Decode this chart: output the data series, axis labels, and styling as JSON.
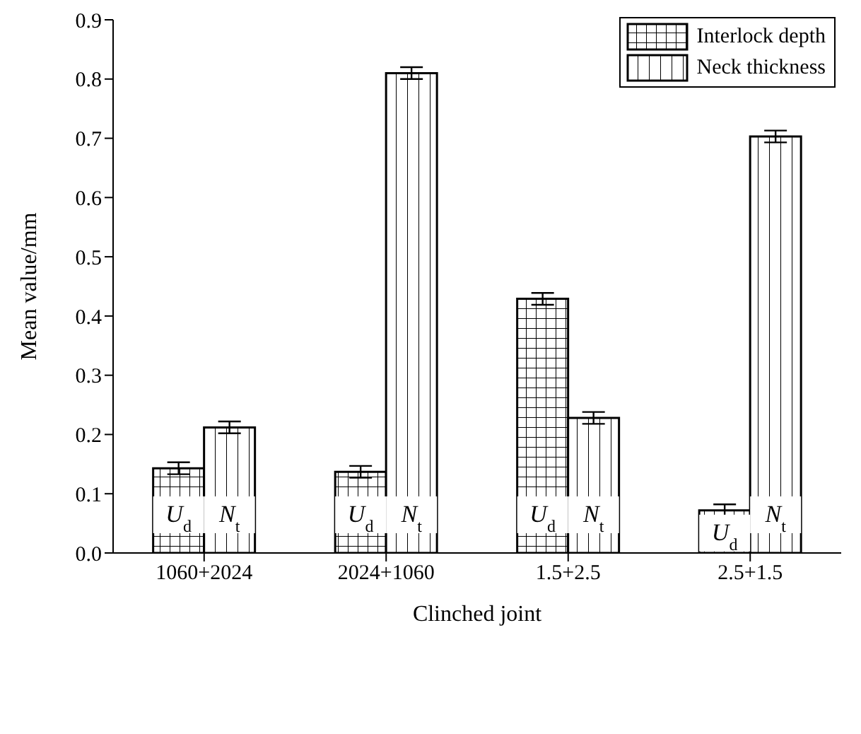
{
  "chart_data": {
    "type": "bar",
    "xlabel": "Clinched joint",
    "ylabel": "Mean value/mm",
    "categories": [
      "1060+2024",
      "2024+1060",
      "1.5+2.5",
      "2.5+1.5"
    ],
    "series": [
      {
        "name": "Interlock depth",
        "color": "#000000",
        "values": [
          0.143,
          0.137,
          0.429,
          0.072
        ],
        "errors": [
          0.01,
          0.01,
          0.01,
          0.01
        ],
        "value_labels": [
          "U$_{d}$",
          "U$_{d}$",
          "U$_{d}$",
          "U$_{d}$"
        ]
      },
      {
        "name": "Neck thickness",
        "color": "#000000",
        "values": [
          0.212,
          0.81,
          0.228,
          0.703
        ],
        "errors": [
          0.01,
          0.01,
          0.01,
          0.01
        ],
        "value_labels": [
          "N$_{t}$",
          "N$_{t}$",
          "N$_{t}$",
          "N$_{t}$"
        ]
      }
    ],
    "ylim": [
      0,
      0.9
    ],
    "yticks": [
      {
        "value": 0,
        "label": "0.0"
      },
      0.1,
      0.2,
      0.3,
      0.4,
      0.5,
      0.6,
      0.7,
      0.8,
      0.9
    ],
    "legend": "top right",
    "grid": false
  }
}
